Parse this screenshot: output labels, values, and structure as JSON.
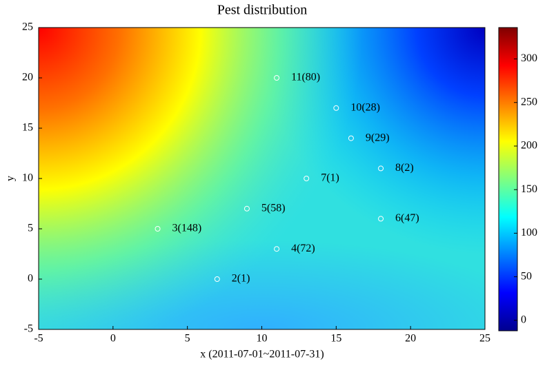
{
  "chart_data": {
    "type": "scatter",
    "title": "Pest distribution",
    "x_label": "x  (2011-07-01~2011-07-31)",
    "y_label": "y",
    "x": [
      7,
      3,
      11,
      9,
      18,
      13,
      18,
      16,
      15,
      11
    ],
    "values": [
      0,
      5,
      3,
      7,
      6,
      10,
      11,
      14,
      17,
      20
    ],
    "point_labels": [
      "2(1)",
      "3(148)",
      "4(72)",
      "5(58)",
      "6(47)",
      "7(1)",
      "8(2)",
      "9(29)",
      "10(28)",
      "11(80)"
    ],
    "color": "#ffffff",
    "xlim": [
      -5,
      25
    ],
    "xticks": [
      -5,
      0,
      5,
      10,
      15,
      20,
      25
    ],
    "ylim": [
      -5,
      25
    ],
    "yticks": [
      -5,
      0,
      5,
      10,
      15,
      20,
      25
    ],
    "colorbar_lim": [
      -12,
      336
    ],
    "colorbar_ticks": [
      0,
      50,
      100,
      150,
      200,
      250,
      300
    ],
    "colormap": "jet"
  }
}
